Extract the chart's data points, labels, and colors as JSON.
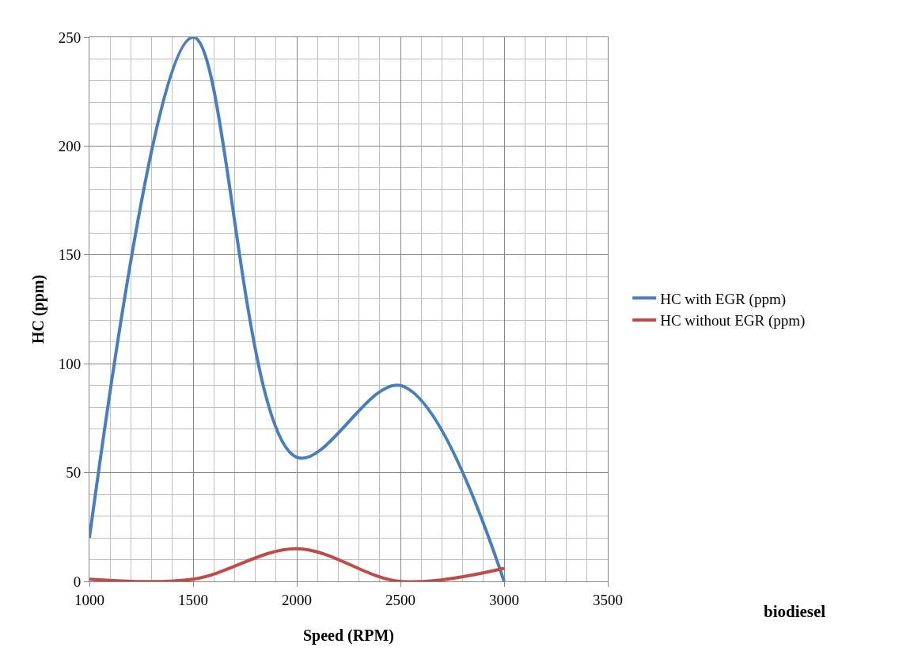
{
  "chart_data": {
    "type": "line",
    "xlabel": "Speed (RPM)",
    "ylabel": "HC (ppm)",
    "x": [
      1000,
      1500,
      2000,
      2500,
      3000
    ],
    "series": [
      {
        "name": "HC with EGR (ppm)",
        "color": "#4a7ebb",
        "values": [
          20,
          250,
          57,
          90,
          0
        ]
      },
      {
        "name": "HC without EGR (ppm)",
        "color": "#be4b48",
        "values": [
          1,
          1,
          15,
          0,
          6
        ]
      }
    ],
    "xlim": [
      1000,
      3500
    ],
    "xticks": [
      1000,
      1500,
      2000,
      2500,
      3000,
      3500
    ],
    "ylim": [
      0,
      250
    ],
    "yticks": [
      0,
      50,
      100,
      150,
      200,
      250
    ],
    "grid": true,
    "legend": "right",
    "marker": "none",
    "line_style": "solid",
    "annotations": [
      "biodiesel"
    ]
  }
}
